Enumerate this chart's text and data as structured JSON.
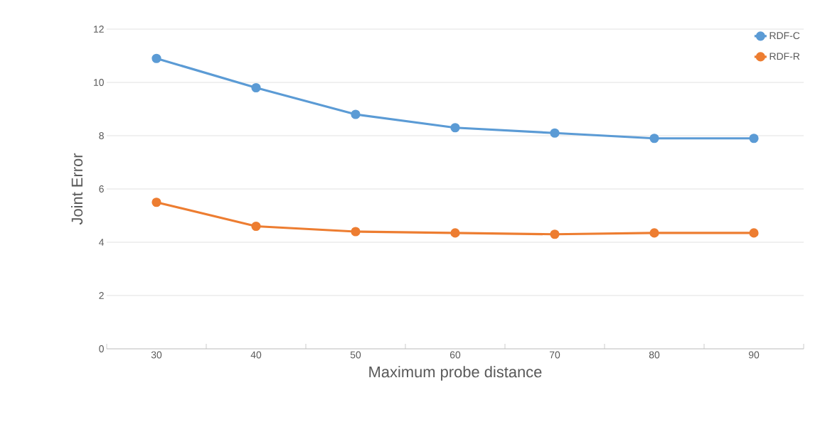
{
  "chart_data": {
    "type": "line",
    "xlabel": "Maximum probe distance",
    "ylabel": "Joint Error",
    "categories": [
      "30",
      "40",
      "50",
      "60",
      "70",
      "80",
      "90"
    ],
    "series": [
      {
        "name": "RDF-C",
        "color": "#5b9bd5",
        "values": [
          10.9,
          9.8,
          8.8,
          8.3,
          8.1,
          7.9,
          7.9
        ]
      },
      {
        "name": "RDF-R",
        "color": "#ed7d31",
        "values": [
          5.5,
          4.6,
          4.4,
          4.35,
          4.3,
          4.35,
          4.35
        ]
      }
    ],
    "ylim": [
      0,
      12
    ],
    "yticks": [
      0,
      2,
      4,
      6,
      8,
      10,
      12
    ],
    "grid": "y",
    "legend": "top right",
    "marker": "circle",
    "line_style": "solid"
  }
}
